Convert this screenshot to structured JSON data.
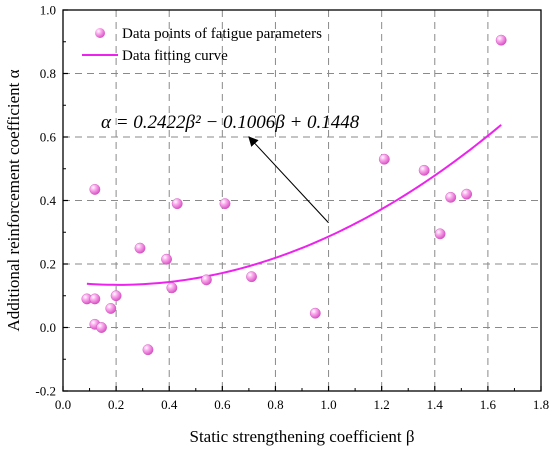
{
  "chart_data": {
    "type": "scatter",
    "xlabel": "Static strengthening coefficient β",
    "ylabel": "Additional reinforcement coefficient α",
    "xlim": [
      0.0,
      1.8
    ],
    "ylim": [
      -0.2,
      1.0
    ],
    "x_ticks": [
      "0.0",
      "0.2",
      "0.4",
      "0.6",
      "0.8",
      "1.0",
      "1.2",
      "1.4",
      "1.6",
      "1.8"
    ],
    "y_ticks": [
      "-0.2",
      "0.0",
      "0.2",
      "0.4",
      "0.6",
      "0.8",
      "1.0"
    ],
    "grid": true,
    "legend": {
      "position": "top-left",
      "entries": [
        "Data points of fatigue parameters",
        "Data fitting curve"
      ]
    },
    "series": [
      {
        "name": "Data points of fatigue parameters",
        "kind": "scatter",
        "color": "#f06ad8",
        "points": [
          {
            "x": 0.09,
            "y": 0.09
          },
          {
            "x": 0.12,
            "y": 0.435
          },
          {
            "x": 0.12,
            "y": 0.09
          },
          {
            "x": 0.12,
            "y": 0.01
          },
          {
            "x": 0.145,
            "y": 0.0
          },
          {
            "x": 0.18,
            "y": 0.06
          },
          {
            "x": 0.2,
            "y": 0.1
          },
          {
            "x": 0.29,
            "y": 0.25
          },
          {
            "x": 0.32,
            "y": -0.07
          },
          {
            "x": 0.39,
            "y": 0.215
          },
          {
            "x": 0.41,
            "y": 0.125
          },
          {
            "x": 0.43,
            "y": 0.39
          },
          {
            "x": 0.54,
            "y": 0.15
          },
          {
            "x": 0.61,
            "y": 0.39
          },
          {
            "x": 0.71,
            "y": 0.16
          },
          {
            "x": 0.95,
            "y": 0.045
          },
          {
            "x": 1.21,
            "y": 0.53
          },
          {
            "x": 1.36,
            "y": 0.495
          },
          {
            "x": 1.42,
            "y": 0.295
          },
          {
            "x": 1.46,
            "y": 0.41
          },
          {
            "x": 1.52,
            "y": 0.42
          },
          {
            "x": 1.65,
            "y": 0.905
          }
        ]
      },
      {
        "name": "Data fitting curve",
        "kind": "curve",
        "color": "#ee22ee",
        "coefficients": {
          "a": 0.2422,
          "b": -0.1006,
          "c": 0.1448
        },
        "x_range": [
          0.09,
          1.65
        ]
      }
    ],
    "annotation": {
      "text": "α = 0.2422β² − 0.1006β + 0.1448",
      "arrow_from": {
        "x": 1.0,
        "y": 0.33
      },
      "arrow_to": {
        "x": 0.7,
        "y": 0.6
      }
    }
  }
}
